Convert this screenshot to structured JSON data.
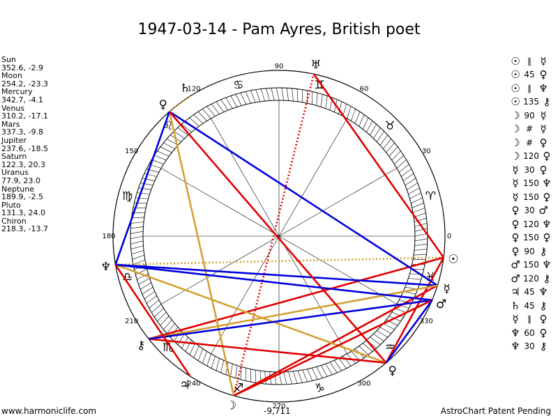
{
  "title": "1947-03-14 - Pam Ayres, British poet",
  "positions": [
    {
      "name": "Sun",
      "value": "352.6, -2.9"
    },
    {
      "name": "Moon",
      "value": "254.2, -23.3"
    },
    {
      "name": "Mercury",
      "value": "342.7, -4.1"
    },
    {
      "name": "Venus",
      "value": "310.2, -17.1"
    },
    {
      "name": "Mars",
      "value": "337.3, -9.8"
    },
    {
      "name": "Jupiter",
      "value": "237.6, -18.5"
    },
    {
      "name": "Saturn",
      "value": "122.3, 20.3"
    },
    {
      "name": "Uranus",
      "value": "77.9, 23.0"
    },
    {
      "name": "Neptune",
      "value": "189.9, -2.5"
    },
    {
      "name": "Pluto",
      "value": "131.3, 24.0"
    },
    {
      "name": "Chiron",
      "value": "218.3, -13.7"
    }
  ],
  "aspects": [
    {
      "p1": "☉",
      "asp": "∥",
      "p2": "☿"
    },
    {
      "p1": "☉",
      "asp": "45",
      "p2": "♀"
    },
    {
      "p1": "☉",
      "asp": "∥",
      "p2": "♆"
    },
    {
      "p1": "☉",
      "asp": "135",
      "p2": "⚷"
    },
    {
      "p1": "☽",
      "asp": "90",
      "p2": "☿"
    },
    {
      "p1": "☽",
      "asp": "#",
      "p2": "☿"
    },
    {
      "p1": "☽",
      "asp": "#",
      "p2": "♀"
    },
    {
      "p1": "☽",
      "asp": "120",
      "p2": "♀"
    },
    {
      "p1": "☿",
      "asp": "30",
      "p2": "♀"
    },
    {
      "p1": "☿",
      "asp": "150",
      "p2": "♆"
    },
    {
      "p1": "☿",
      "asp": "150",
      "p2": "♀"
    },
    {
      "p1": "♀",
      "asp": "30",
      "p2": "♂"
    },
    {
      "p1": "♀",
      "asp": "120",
      "p2": "♆"
    },
    {
      "p1": "♀",
      "asp": "150",
      "p2": "♀"
    },
    {
      "p1": "♀",
      "asp": "90",
      "p2": "⚷"
    },
    {
      "p1": "♂",
      "asp": "150",
      "p2": "♆"
    },
    {
      "p1": "♂",
      "asp": "120",
      "p2": "⚷"
    },
    {
      "p1": "♃",
      "asp": "45",
      "p2": "♆"
    },
    {
      "p1": "♄",
      "asp": "45",
      "p2": "⚷"
    },
    {
      "p1": "☿",
      "asp": "∥",
      "p2": "♀"
    },
    {
      "p1": "♆",
      "asp": "60",
      "p2": "♀"
    },
    {
      "p1": "♆",
      "asp": "30",
      "p2": "⚷"
    }
  ],
  "degree_labels": [
    "0",
    "30",
    "60",
    "90",
    "120",
    "150",
    "180",
    "210",
    "240",
    "270",
    "300",
    "330"
  ],
  "zodiac": [
    "♈",
    "♉",
    "♊",
    "♋",
    "♌",
    "♍",
    "♎",
    "♏",
    "♐",
    "♑",
    "♒",
    "♓"
  ],
  "planets": [
    {
      "symbol": "☉",
      "deg": 352.6
    },
    {
      "symbol": "☽",
      "deg": 254.2
    },
    {
      "symbol": "☿",
      "deg": 342.7
    },
    {
      "symbol": "♀",
      "deg": 310.2
    },
    {
      "symbol": "♂",
      "deg": 337.3
    },
    {
      "symbol": "♃",
      "deg": 237.6
    },
    {
      "symbol": "♄",
      "deg": 122.3
    },
    {
      "symbol": "♅",
      "deg": 77.9
    },
    {
      "symbol": "♆",
      "deg": 189.9
    },
    {
      "symbol": "♀",
      "deg": 131.3
    },
    {
      "symbol": "⚷",
      "deg": 218.3
    }
  ],
  "aspect_lines": [
    {
      "a": 352.6,
      "b": 77.9,
      "color": "#e00000",
      "style": "solid"
    },
    {
      "a": 352.6,
      "b": 189.9,
      "color": "#d4a030",
      "style": "dotted"
    },
    {
      "a": 352.6,
      "b": 218.3,
      "color": "#e00000",
      "style": "solid"
    },
    {
      "a": 352.6,
      "b": 310.2,
      "color": "#e00000",
      "style": "solid"
    },
    {
      "a": 254.2,
      "b": 77.9,
      "color": "#e00000",
      "style": "dotted"
    },
    {
      "a": 254.2,
      "b": 131.3,
      "color": "#d4a030",
      "style": "solid"
    },
    {
      "a": 254.2,
      "b": 342.7,
      "color": "#e00000",
      "style": "solid"
    },
    {
      "a": 342.7,
      "b": 131.3,
      "color": "#0000e0",
      "style": "solid"
    },
    {
      "a": 342.7,
      "b": 189.9,
      "color": "#0000e0",
      "style": "solid"
    },
    {
      "a": 342.7,
      "b": 218.3,
      "color": "#d4a030",
      "style": "solid"
    },
    {
      "a": 310.2,
      "b": 131.3,
      "color": "#e00000",
      "style": "solid"
    },
    {
      "a": 310.2,
      "b": 189.9,
      "color": "#d4a030",
      "style": "solid"
    },
    {
      "a": 310.2,
      "b": 218.3,
      "color": "#e00000",
      "style": "solid"
    },
    {
      "a": 337.3,
      "b": 189.9,
      "color": "#0000e0",
      "style": "solid"
    },
    {
      "a": 337.3,
      "b": 218.3,
      "color": "#0000e0",
      "style": "solid"
    },
    {
      "a": 337.3,
      "b": 254.2,
      "color": "#e00000",
      "style": "solid"
    },
    {
      "a": 237.6,
      "b": 189.9,
      "color": "#e00000",
      "style": "solid"
    },
    {
      "a": 122.3,
      "b": 131.3,
      "color": "#d4a030",
      "style": "dotted"
    },
    {
      "a": 189.9,
      "b": 131.3,
      "color": "#0000e0",
      "style": "solid"
    },
    {
      "a": 310.2,
      "b": 337.3,
      "color": "#0000e0",
      "style": "solid"
    }
  ],
  "bottom_number": "-9,711",
  "footer_left": "www.harmoniclife.com",
  "footer_right": "AstroChart Patent Pending"
}
